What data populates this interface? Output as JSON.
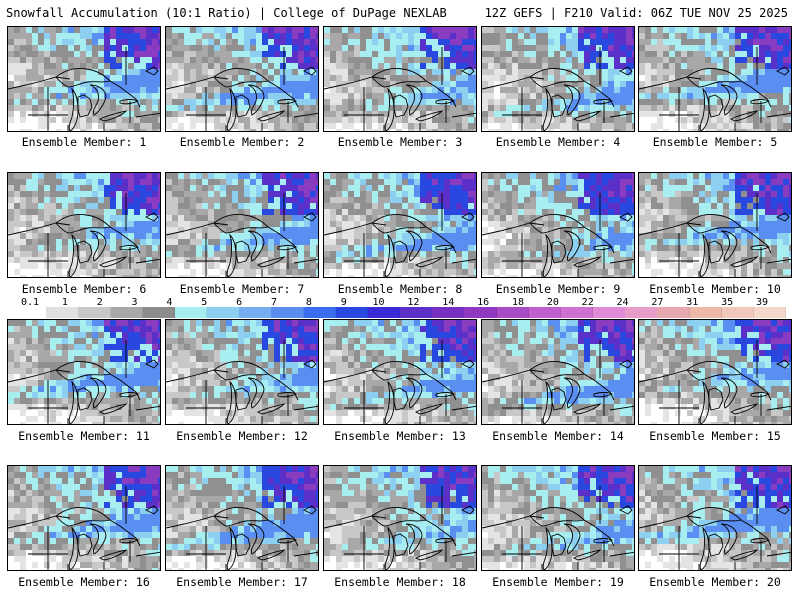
{
  "header": {
    "left_title": "Snowfall Accumulation (10:1 Ratio) | College of DuPage NEXLAB",
    "right_title": "12Z GEFS | F210 Valid: 06Z TUE NOV 25 2025"
  },
  "panels": [
    {
      "label": "Ensemble Member: 1",
      "member": 1
    },
    {
      "label": "Ensemble Member: 2",
      "member": 2
    },
    {
      "label": "Ensemble Member: 3",
      "member": 3
    },
    {
      "label": "Ensemble Member: 4",
      "member": 4
    },
    {
      "label": "Ensemble Member: 5",
      "member": 5
    },
    {
      "label": "Ensemble Member: 6",
      "member": 6
    },
    {
      "label": "Ensemble Member: 7",
      "member": 7
    },
    {
      "label": "Ensemble Member: 8",
      "member": 8
    },
    {
      "label": "Ensemble Member: 9",
      "member": 9
    },
    {
      "label": "Ensemble Member: 10",
      "member": 10
    },
    {
      "label": "Ensemble Member: 11",
      "member": 11
    },
    {
      "label": "Ensemble Member: 12",
      "member": 12
    },
    {
      "label": "Ensemble Member: 13",
      "member": 13
    },
    {
      "label": "Ensemble Member: 14",
      "member": 14
    },
    {
      "label": "Ensemble Member: 15",
      "member": 15
    },
    {
      "label": "Ensemble Member: 16",
      "member": 16
    },
    {
      "label": "Ensemble Member: 17",
      "member": 17
    },
    {
      "label": "Ensemble Member: 18",
      "member": 18
    },
    {
      "label": "Ensemble Member: 19",
      "member": 19
    },
    {
      "label": "Ensemble Member: 20",
      "member": 20
    }
  ],
  "colorbar": {
    "labels": [
      "0.1",
      "1",
      "2",
      "3",
      "4",
      "5",
      "6",
      "7",
      "8",
      "9",
      "10",
      "12",
      "14",
      "16",
      "18",
      "20",
      "22",
      "24",
      "27",
      "31",
      "35",
      "39"
    ],
    "colors": [
      "#ffffff",
      "#e0e0e0",
      "#c8c8c8",
      "#a8a8a8",
      "#8c8c8c",
      "#a8eef0",
      "#8ccff0",
      "#74aef0",
      "#5a8ef0",
      "#3c6cf0",
      "#2848e0",
      "#3a2ad8",
      "#5a30c8",
      "#7830c0",
      "#9038c0",
      "#a84cc8",
      "#c060cc",
      "#d070d0",
      "#e08ad8",
      "#e89cc8",
      "#e8a8b0",
      "#ecb8a8",
      "#f0c8bc",
      "#f4d8cc"
    ]
  }
}
